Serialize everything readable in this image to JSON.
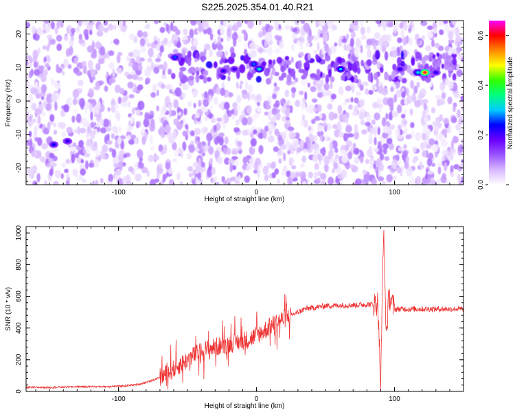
{
  "title": "S225.2025.354.01.40.R21",
  "chart_data": [
    {
      "type": "heatmap",
      "xlabel": "Height of straight line (km)",
      "ylabel": "Frequency (Hz)",
      "xlim": [
        -167,
        150
      ],
      "ylim": [
        -25,
        24
      ],
      "xticks": [
        -100,
        0,
        100
      ],
      "yticks": [
        -20,
        -10,
        0,
        10,
        20
      ],
      "colorbar": {
        "label": "Normalized spectral amplitude",
        "range": [
          0,
          0.66
        ],
        "ticks": [
          0.0,
          0.2,
          0.4,
          0.6
        ],
        "colors": [
          "#ffffff",
          "#d8b8ff",
          "#9a55ff",
          "#6a00ff",
          "#0000ff",
          "#00ccff",
          "#00ff80",
          "#33ff00",
          "#ffff00",
          "#ff8800",
          "#ff0000",
          "#ff00ff"
        ]
      },
      "ridge": {
        "frequency_hz": 10,
        "x_range": [
          -65,
          145
        ]
      },
      "hotspots": [
        {
          "x": -147,
          "y": -13,
          "v": 0.24
        },
        {
          "x": -137,
          "y": -12,
          "v": 0.22
        },
        {
          "x": -59,
          "y": 13,
          "v": 0.26
        },
        {
          "x": -24,
          "y": 9,
          "v": 0.22
        },
        {
          "x": -16,
          "y": 9.5,
          "v": 0.21
        },
        {
          "x": -2,
          "y": 11,
          "v": 0.27
        },
        {
          "x": 2,
          "y": 9.5,
          "v": 0.33
        },
        {
          "x": 61,
          "y": 9.5,
          "v": 0.3
        },
        {
          "x": 104,
          "y": 9.5,
          "v": 0.22
        },
        {
          "x": 117,
          "y": 8.5,
          "v": 0.32
        },
        {
          "x": 122,
          "y": 8.5,
          "v": 0.62
        },
        {
          "x": 130,
          "y": 8.5,
          "v": 0.22
        }
      ]
    },
    {
      "type": "line",
      "xlabel": "Height of straight line (km)",
      "ylabel": "SNR (10 * v/v)",
      "xlim": [
        -167,
        150
      ],
      "ylim": [
        0,
        1040
      ],
      "xticks": [
        -100,
        0,
        100
      ],
      "yticks": [
        0,
        200,
        400,
        600,
        800,
        1000
      ],
      "color": "#ee3333",
      "series": [
        {
          "x": [
            -167,
            -150,
            -130,
            -110,
            -95,
            -85,
            -75,
            -65,
            -55,
            -45,
            -35,
            -25,
            -15,
            -5,
            5,
            15,
            25,
            35,
            50,
            70,
            85,
            88,
            90,
            92,
            94,
            96,
            100,
            110,
            130,
            150
          ],
          "y": [
            25,
            25,
            30,
            30,
            35,
            45,
            70,
            110,
            170,
            230,
            270,
            290,
            310,
            330,
            380,
            440,
            480,
            520,
            540,
            545,
            550,
            560,
            20,
            1040,
            350,
            600,
            520,
            520,
            520,
            520
          ]
        }
      ]
    }
  ]
}
